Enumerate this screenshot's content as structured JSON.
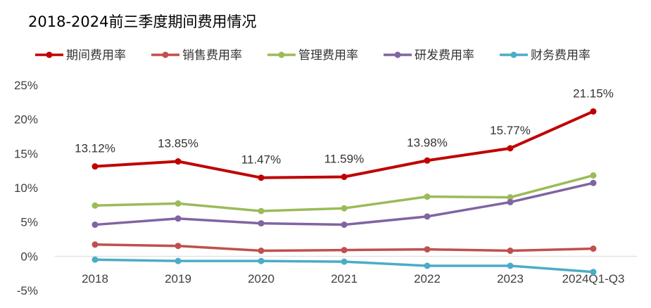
{
  "chart_data": {
    "type": "line",
    "title": "2018-2024前三季度期间费用情况",
    "xlabel": "",
    "ylabel": "",
    "categories": [
      "2018",
      "2019",
      "2020",
      "2021",
      "2022",
      "2023",
      "2024Q1-Q3"
    ],
    "ylim": [
      -5,
      25
    ],
    "yticks": [
      -5,
      0,
      5,
      10,
      15,
      20,
      25
    ],
    "ytick_labels": [
      "-5%",
      "0%",
      "5%",
      "10%",
      "15%",
      "20%",
      "25%"
    ],
    "grid": false,
    "legend_position": "top",
    "series": [
      {
        "name": "期间费用率",
        "color": "#C00000",
        "values": [
          13.12,
          13.85,
          11.47,
          11.59,
          13.98,
          15.77,
          21.15
        ],
        "labels": [
          "13.12%",
          "13.85%",
          "11.47%",
          "11.59%",
          "13.98%",
          "15.77%",
          "21.15%"
        ]
      },
      {
        "name": "销售费用率",
        "color": "#C0504D",
        "values": [
          1.7,
          1.5,
          0.8,
          0.9,
          1.0,
          0.8,
          1.1
        ]
      },
      {
        "name": "管理费用率",
        "color": "#9BBB59",
        "values": [
          7.4,
          7.7,
          6.6,
          7.0,
          8.7,
          8.6,
          11.8
        ]
      },
      {
        "name": "研发费用率",
        "color": "#8064A2",
        "values": [
          4.6,
          5.5,
          4.8,
          4.6,
          5.8,
          7.9,
          10.7
        ]
      },
      {
        "name": "财务费用率",
        "color": "#4BACC6",
        "values": [
          -0.5,
          -0.7,
          -0.7,
          -0.8,
          -1.4,
          -1.4,
          -2.3
        ]
      }
    ]
  }
}
